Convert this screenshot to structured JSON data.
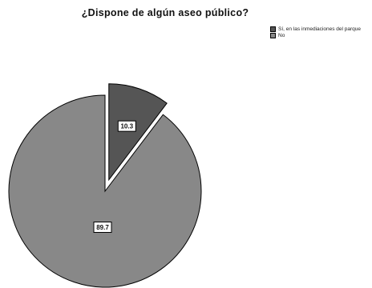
{
  "chart_data": {
    "type": "pie",
    "title": "¿Dispone de algún aseo público?",
    "slices": [
      {
        "label": "Sí, en las inmediaciones del parque",
        "value": 10.3,
        "display": "10.3",
        "color": "#555555",
        "exploded": true
      },
      {
        "label": "No",
        "value": 89.7,
        "display": "89.7",
        "color": "#888888",
        "exploded": false
      }
    ],
    "legend_position": "top-right"
  }
}
